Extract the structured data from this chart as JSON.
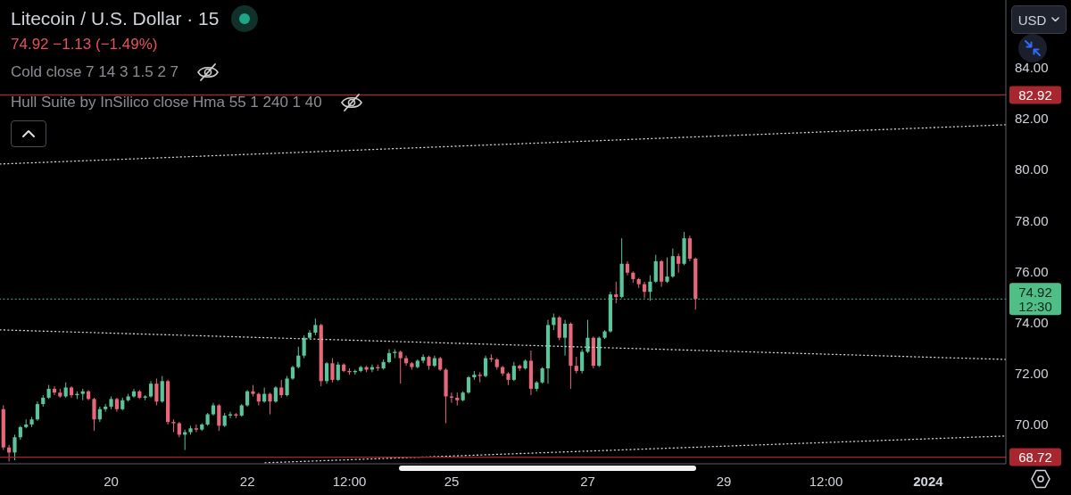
{
  "chart_data": {
    "type": "candlestick",
    "title": "Litecoin / U.S. Dollar · 15",
    "subtitle": "74.92 −1.13 (−1.49%)",
    "annotations": [
      "Cold close 7 14 3 1.5 2 7",
      "Hull Suite by InSilico close Hma 55 1 240 1 40",
      "USD"
    ],
    "x": [
      "2023-12-18T10:00",
      "2023-12-18T12:00",
      "2023-12-18T14:00",
      "2023-12-18T16:00",
      "2023-12-18T18:00",
      "2023-12-18T20:00",
      "2023-12-18T22:00",
      "2023-12-19T00:00",
      "2023-12-19T02:00",
      "2023-12-19T04:00",
      "2023-12-19T06:00",
      "2023-12-19T08:00",
      "2023-12-19T10:00",
      "2023-12-19T12:00",
      "2023-12-19T14:00",
      "2023-12-19T16:00",
      "2023-12-19T18:00",
      "2023-12-19T20:00",
      "2023-12-19T22:00",
      "2023-12-20T00:00",
      "2023-12-20T02:00",
      "2023-12-20T04:00",
      "2023-12-20T06:00",
      "2023-12-20T08:00",
      "2023-12-20T10:00",
      "2023-12-20T12:00",
      "2023-12-20T14:00",
      "2023-12-20T16:00",
      "2023-12-20T18:00",
      "2023-12-20T20:00",
      "2023-12-20T22:00",
      "2023-12-21T00:00",
      "2023-12-21T02:00",
      "2023-12-21T04:00",
      "2023-12-21T06:00",
      "2023-12-21T08:00",
      "2023-12-21T10:00",
      "2023-12-21T12:00",
      "2023-12-21T14:00",
      "2023-12-21T16:00",
      "2023-12-21T18:00",
      "2023-12-21T20:00",
      "2023-12-21T22:00",
      "2023-12-22T00:00",
      "2023-12-22T02:00",
      "2023-12-22T04:00",
      "2023-12-22T06:00",
      "2023-12-22T08:00",
      "2023-12-22T10:00",
      "2023-12-22T12:00",
      "2023-12-22T14:00",
      "2023-12-22T16:00",
      "2023-12-22T18:00",
      "2023-12-22T20:00",
      "2023-12-22T22:00",
      "2023-12-23T00:00",
      "2023-12-23T02:00",
      "2023-12-23T04:00",
      "2023-12-23T06:00",
      "2023-12-23T08:00",
      "2023-12-23T10:00",
      "2023-12-23T12:00",
      "2023-12-23T14:00",
      "2023-12-23T16:00",
      "2023-12-23T18:00",
      "2023-12-23T20:00",
      "2023-12-23T22:00",
      "2023-12-24T00:00",
      "2023-12-24T02:00",
      "2023-12-24T04:00",
      "2023-12-24T06:00",
      "2023-12-24T08:00",
      "2023-12-24T10:00",
      "2023-12-24T12:00",
      "2023-12-24T14:00",
      "2023-12-24T16:00",
      "2023-12-24T18:00",
      "2023-12-24T20:00",
      "2023-12-24T22:00",
      "2023-12-25T00:00",
      "2023-12-25T02:00",
      "2023-12-25T04:00",
      "2023-12-25T06:00",
      "2023-12-25T08:00",
      "2023-12-25T10:00",
      "2023-12-25T12:00",
      "2023-12-25T14:00",
      "2023-12-25T16:00",
      "2023-12-25T18:00",
      "2023-12-25T20:00",
      "2023-12-25T22:00",
      "2023-12-26T00:00",
      "2023-12-26T02:00",
      "2023-12-26T04:00",
      "2023-12-26T06:00",
      "2023-12-26T08:00",
      "2023-12-26T10:00",
      "2023-12-26T12:00",
      "2023-12-26T14:00",
      "2023-12-26T16:00",
      "2023-12-26T18:00",
      "2023-12-26T20:00",
      "2023-12-26T22:00",
      "2023-12-27T00:00",
      "2023-12-27T02:00",
      "2023-12-27T04:00",
      "2023-12-27T06:00",
      "2023-12-27T08:00",
      "2023-12-27T10:00",
      "2023-12-27T12:00",
      "2023-12-27T14:00",
      "2023-12-27T16:00",
      "2023-12-27T18:00",
      "2023-12-27T20:00",
      "2023-12-27T22:00",
      "2023-12-28T00:00",
      "2023-12-28T02:00",
      "2023-12-28T04:00",
      "2023-12-28T06:00",
      "2023-12-28T08:00",
      "2023-12-28T10:00",
      "2023-12-28T12:00",
      "2023-12-28T14:00"
    ],
    "ohlc": [
      [
        70.6,
        70.75,
        69.0,
        69.1
      ],
      [
        69.1,
        69.2,
        68.55,
        68.9
      ],
      [
        68.9,
        69.6,
        68.6,
        69.5
      ],
      [
        69.5,
        69.95,
        69.4,
        69.9
      ],
      [
        69.9,
        70.2,
        69.85,
        70.0
      ],
      [
        70.0,
        70.3,
        69.9,
        70.2
      ],
      [
        70.2,
        70.9,
        70.15,
        70.8
      ],
      [
        70.8,
        71.15,
        70.7,
        71.05
      ],
      [
        71.05,
        71.55,
        71.0,
        71.4
      ],
      [
        71.4,
        71.5,
        71.15,
        71.25
      ],
      [
        71.25,
        71.4,
        71.05,
        71.1
      ],
      [
        71.1,
        71.65,
        71.05,
        71.45
      ],
      [
        71.45,
        71.5,
        71.05,
        71.15
      ],
      [
        71.15,
        71.3,
        71.0,
        71.2
      ],
      [
        71.2,
        71.4,
        70.95,
        71.3
      ],
      [
        71.3,
        71.35,
        70.95,
        71.0
      ],
      [
        71.0,
        71.05,
        69.75,
        70.2
      ],
      [
        70.2,
        70.7,
        70.1,
        70.6
      ],
      [
        70.6,
        70.8,
        70.5,
        70.7
      ],
      [
        70.7,
        71.1,
        70.6,
        71.0
      ],
      [
        71.0,
        71.05,
        70.5,
        70.6
      ],
      [
        70.6,
        71.05,
        70.55,
        70.95
      ],
      [
        70.95,
        71.2,
        70.9,
        71.1
      ],
      [
        71.1,
        71.4,
        71.05,
        71.3
      ],
      [
        71.3,
        71.35,
        71.0,
        71.05
      ],
      [
        71.05,
        71.15,
        70.95,
        71.1
      ],
      [
        71.1,
        71.7,
        71.05,
        71.6
      ],
      [
        71.6,
        71.8,
        70.75,
        70.9
      ],
      [
        70.9,
        71.9,
        70.85,
        71.7
      ],
      [
        71.7,
        71.75,
        70.0,
        70.1
      ],
      [
        70.1,
        70.2,
        69.7,
        70.05
      ],
      [
        70.05,
        70.1,
        69.5,
        69.6
      ],
      [
        69.6,
        69.8,
        69.0,
        69.7
      ],
      [
        69.7,
        69.95,
        69.6,
        69.85
      ],
      [
        69.85,
        70.0,
        69.7,
        69.8
      ],
      [
        69.8,
        70.05,
        69.75,
        70.0
      ],
      [
        70.0,
        70.45,
        69.95,
        70.4
      ],
      [
        70.4,
        70.85,
        70.35,
        70.75
      ],
      [
        70.75,
        70.8,
        69.75,
        69.95
      ],
      [
        69.95,
        70.45,
        69.9,
        70.35
      ],
      [
        70.35,
        70.5,
        70.25,
        70.4
      ],
      [
        70.4,
        70.45,
        70.25,
        70.35
      ],
      [
        70.35,
        70.8,
        70.3,
        70.75
      ],
      [
        70.75,
        71.35,
        70.7,
        71.3
      ],
      [
        71.3,
        71.55,
        71.1,
        71.2
      ],
      [
        71.2,
        71.25,
        70.75,
        70.9
      ],
      [
        70.9,
        71.45,
        70.85,
        71.2
      ],
      [
        71.2,
        71.25,
        70.4,
        70.9
      ],
      [
        70.9,
        71.5,
        70.85,
        71.45
      ],
      [
        71.45,
        71.75,
        71.05,
        71.15
      ],
      [
        71.15,
        71.9,
        71.1,
        71.8
      ],
      [
        71.8,
        72.3,
        71.75,
        72.25
      ],
      [
        72.25,
        73.05,
        72.2,
        72.7
      ],
      [
        72.7,
        73.5,
        72.6,
        73.4
      ],
      [
        73.4,
        73.7,
        73.35,
        73.6
      ],
      [
        73.6,
        74.15,
        73.5,
        73.9
      ],
      [
        73.9,
        73.95,
        71.5,
        71.7
      ],
      [
        71.7,
        72.45,
        71.6,
        72.4
      ],
      [
        72.4,
        72.6,
        71.65,
        71.75
      ],
      [
        71.75,
        72.45,
        71.7,
        72.35
      ],
      [
        72.35,
        72.4,
        72.05,
        72.1
      ],
      [
        72.1,
        72.2,
        71.95,
        72.05
      ],
      [
        72.05,
        72.15,
        71.95,
        72.1
      ],
      [
        72.1,
        72.3,
        72.05,
        72.25
      ],
      [
        72.25,
        72.3,
        72.05,
        72.15
      ],
      [
        72.15,
        72.35,
        72.05,
        72.25
      ],
      [
        72.25,
        72.35,
        72.1,
        72.2
      ],
      [
        72.2,
        72.55,
        72.15,
        72.45
      ],
      [
        72.45,
        72.95,
        72.4,
        72.8
      ],
      [
        72.8,
        72.95,
        72.6,
        72.85
      ],
      [
        72.85,
        72.9,
        71.6,
        72.6
      ],
      [
        72.6,
        72.7,
        72.3,
        72.4
      ],
      [
        72.4,
        72.45,
        72.15,
        72.25
      ],
      [
        72.25,
        72.55,
        72.2,
        72.5
      ],
      [
        72.5,
        72.75,
        72.4,
        72.65
      ],
      [
        72.65,
        72.7,
        72.15,
        72.3
      ],
      [
        72.3,
        72.7,
        72.25,
        72.6
      ],
      [
        72.6,
        72.65,
        72.1,
        72.15
      ],
      [
        72.15,
        72.2,
        70.05,
        71.1
      ],
      [
        71.1,
        71.25,
        70.85,
        71.05
      ],
      [
        71.05,
        71.25,
        70.75,
        70.95
      ],
      [
        70.95,
        71.3,
        70.9,
        71.25
      ],
      [
        71.25,
        71.9,
        71.2,
        71.85
      ],
      [
        71.85,
        72.1,
        71.75,
        71.95
      ],
      [
        71.95,
        72.05,
        71.65,
        71.9
      ],
      [
        71.9,
        72.7,
        71.85,
        72.6
      ],
      [
        72.6,
        72.75,
        72.45,
        72.55
      ],
      [
        72.55,
        72.6,
        72.15,
        72.25
      ],
      [
        72.25,
        72.3,
        71.9,
        72.0
      ],
      [
        72.0,
        72.05,
        71.55,
        71.75
      ],
      [
        71.75,
        72.45,
        71.7,
        72.3
      ],
      [
        72.3,
        72.35,
        72.1,
        72.2
      ],
      [
        72.2,
        72.55,
        72.15,
        72.5
      ],
      [
        72.5,
        72.9,
        71.15,
        71.4
      ],
      [
        71.4,
        71.7,
        71.3,
        71.65
      ],
      [
        71.65,
        72.25,
        71.6,
        72.2
      ],
      [
        72.2,
        74.1,
        71.6,
        73.9
      ],
      [
        73.9,
        74.35,
        73.7,
        74.2
      ],
      [
        74.2,
        74.25,
        73.3,
        73.4
      ],
      [
        73.4,
        74.1,
        72.7,
        73.95
      ],
      [
        73.95,
        74.0,
        71.4,
        72.3
      ],
      [
        72.3,
        72.65,
        72.0,
        72.1
      ],
      [
        72.1,
        72.95,
        72.0,
        72.85
      ],
      [
        72.85,
        74.1,
        72.8,
        73.4
      ],
      [
        73.4,
        73.45,
        72.2,
        72.3
      ],
      [
        72.3,
        73.45,
        72.25,
        73.4
      ],
      [
        73.4,
        73.7,
        73.35,
        73.65
      ],
      [
        73.65,
        75.2,
        73.6,
        75.1
      ],
      [
        75.1,
        75.6,
        74.75,
        75.0
      ],
      [
        75.0,
        77.3,
        74.95,
        76.3
      ],
      [
        76.3,
        76.4,
        75.85,
        75.95
      ],
      [
        75.95,
        76.0,
        75.55,
        75.7
      ],
      [
        75.7,
        75.75,
        75.35,
        75.5
      ],
      [
        75.5,
        75.6,
        74.95,
        75.2
      ],
      [
        75.2,
        75.85,
        74.85,
        75.6
      ],
      [
        75.6,
        76.65,
        75.55,
        76.4
      ],
      [
        76.4,
        76.45,
        75.4,
        75.6
      ],
      [
        75.6,
        76.55,
        75.55,
        75.8
      ],
      [
        75.8,
        76.9,
        75.75,
        76.6
      ],
      [
        76.6,
        76.7,
        75.95,
        76.3
      ],
      [
        76.3,
        77.55,
        76.25,
        77.3
      ],
      [
        77.3,
        77.4,
        76.4,
        76.5
      ],
      [
        76.5,
        76.55,
        74.5,
        74.92
      ]
    ],
    "colors": [
      "#e8677a",
      "#e8677a",
      "#5cc49a",
      "#5cc49a",
      "#5cc49a",
      "#5cc49a",
      "#5cc49a",
      "#5cc49a",
      "#5cc49a",
      "#e8677a",
      "#e8677a",
      "#5cc49a",
      "#e8677a",
      "#5cc49a",
      "#5cc49a",
      "#e8677a",
      "#e8677a",
      "#5cc49a",
      "#5cc49a",
      "#5cc49a",
      "#e8677a",
      "#5cc49a",
      "#5cc49a",
      "#5cc49a",
      "#e8677a",
      "#5cc49a",
      "#5cc49a",
      "#e8677a",
      "#5cc49a",
      "#e8677a",
      "#e8677a",
      "#e8677a",
      "#5cc49a",
      "#5cc49a",
      "#e8677a",
      "#5cc49a",
      "#5cc49a",
      "#5cc49a",
      "#e8677a",
      "#5cc49a",
      "#5cc49a",
      "#e8677a",
      "#5cc49a",
      "#5cc49a",
      "#e8677a",
      "#e8677a",
      "#5cc49a",
      "#e8677a",
      "#5cc49a",
      "#e8677a",
      "#5cc49a",
      "#5cc49a",
      "#5cc49a",
      "#5cc49a",
      "#5cc49a",
      "#5cc49a",
      "#e8677a",
      "#5cc49a",
      "#e8677a",
      "#5cc49a",
      "#e8677a",
      "#e8677a",
      "#5cc49a",
      "#5cc49a",
      "#e8677a",
      "#5cc49a",
      "#e8677a",
      "#5cc49a",
      "#5cc49a",
      "#5cc49a",
      "#e8677a",
      "#e8677a",
      "#e8677a",
      "#5cc49a",
      "#5cc49a",
      "#e8677a",
      "#5cc49a",
      "#e8677a",
      "#e8677a",
      "#e8677a",
      "#e8677a",
      "#5cc49a",
      "#5cc49a",
      "#5cc49a",
      "#e8677a",
      "#5cc49a",
      "#e8677a",
      "#e8677a",
      "#e8677a",
      "#e8677a",
      "#5cc49a",
      "#e8677a",
      "#5cc49a",
      "#e8677a",
      "#5cc49a",
      "#5cc49a",
      "#5cc49a",
      "#5cc49a",
      "#e8677a",
      "#5cc49a",
      "#e8677a",
      "#e8677a",
      "#5cc49a",
      "#5cc49a",
      "#e8677a",
      "#5cc49a",
      "#5cc49a",
      "#5cc49a",
      "#e8677a",
      "#5cc49a",
      "#e8677a",
      "#e8677a",
      "#e8677a",
      "#e8677a",
      "#5cc49a",
      "#5cc49a",
      "#e8677a",
      "#5cc49a",
      "#5cc49a",
      "#e8677a",
      "#5cc49a",
      "#e8677a",
      "#e8677a"
    ],
    "series": [
      {
        "type": "line",
        "x": [
          "2023-12-18T08:48",
          "2024-01-02T03:24"
        ],
        "values": [
          80.21,
          81.75
        ],
        "color": "#d8d8d8",
        "line_style": "dotted"
      },
      {
        "type": "line",
        "x": [
          "2023-12-18T08:48",
          "2024-01-02T03:24"
        ],
        "values": [
          73.71,
          72.55
        ],
        "color": "#d8d8d8",
        "line_style": "dotted"
      },
      {
        "type": "line",
        "x": [
          "2023-12-22T06:15",
          "2024-01-02T03:24"
        ],
        "values": [
          68.5,
          69.55
        ],
        "color": "#d8d8d8",
        "line_style": "dotted"
      }
    ],
    "ref_lines": [
      {
        "axis": "y",
        "value": 82.92,
        "label": "82.92",
        "color": "#a8262e"
      },
      {
        "axis": "y",
        "value": 74.92,
        "label": "74.92\n12:30",
        "color": "#4fbf87",
        "line_style": "dotted"
      },
      {
        "axis": "y",
        "value": 68.72,
        "label": "68.72",
        "color": "#a8262e"
      }
    ],
    "xlim": [
      "2023-12-18T08:48",
      "2024-01-02T03:24"
    ],
    "xticks": [
      {
        "value": "2023-12-20",
        "label": "20"
      },
      {
        "value": "2023-12-22",
        "label": "22"
      },
      {
        "value": "2023-12-23T12:00",
        "label": "12:00"
      },
      {
        "value": "2023-12-25",
        "label": "25"
      },
      {
        "value": "2023-12-27",
        "label": "27"
      },
      {
        "value": "2023-12-29",
        "label": "29"
      },
      {
        "value": "2023-12-30T12:00",
        "label": "12:00"
      },
      {
        "value": "2024-01-01",
        "label": "2024"
      }
    ],
    "ylim": [
      68.46,
      86.64
    ],
    "yticks": [
      {
        "value": 70,
        "label": "70.00"
      },
      {
        "value": 72,
        "label": "72.00"
      },
      {
        "value": 74,
        "label": "74.00"
      },
      {
        "value": 76,
        "label": "76.00"
      },
      {
        "value": 78,
        "label": "78.00"
      },
      {
        "value": 80,
        "label": "80.00"
      },
      {
        "value": 82,
        "label": "82.00"
      },
      {
        "value": 84,
        "label": "84.00"
      }
    ]
  }
}
